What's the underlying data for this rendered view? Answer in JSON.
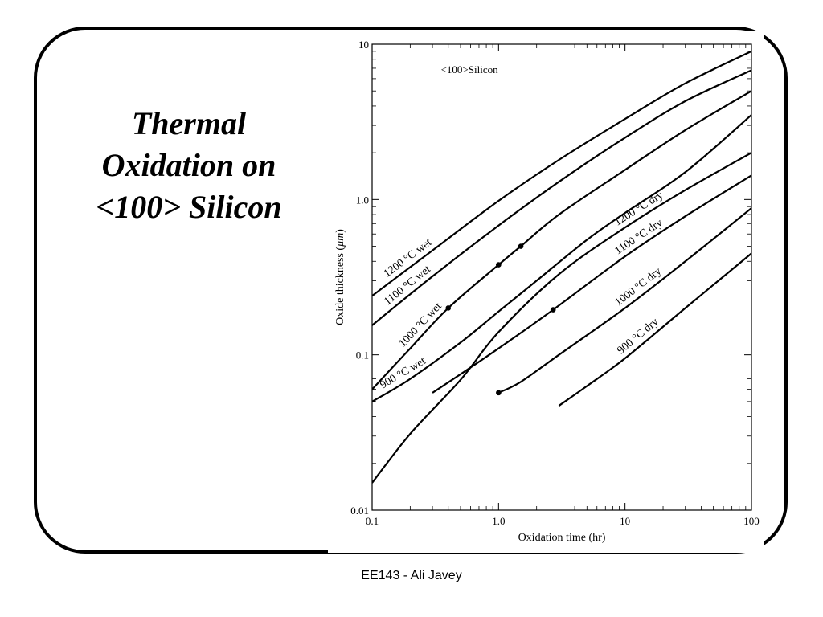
{
  "slide": {
    "title": "Thermal\nOxidation on\n<100> Silicon",
    "footer": "EE143 - Ali Javey"
  },
  "chart_data": {
    "type": "line",
    "xlabel": "Oxidation time (hr)",
    "ylabel_prefix": "Oxide thickness (",
    "ylabel_unit": "μm",
    "ylabel_suffix": ")",
    "annotation": "<100>Silicon",
    "xscale": "log",
    "yscale": "log",
    "xlim": [
      0.1,
      100
    ],
    "ylim": [
      0.01,
      10
    ],
    "xticks": [
      {
        "value": 0.1,
        "label": "0.1"
      },
      {
        "value": 1,
        "label": "1.0"
      },
      {
        "value": 10,
        "label": "10"
      },
      {
        "value": 100,
        "label": "100"
      }
    ],
    "yticks": [
      {
        "value": 0.01,
        "label": "0.01"
      },
      {
        "value": 0.1,
        "label": "0.1"
      },
      {
        "value": 1,
        "label": "1.0"
      },
      {
        "value": 10,
        "label": "10"
      }
    ],
    "grid": false,
    "legend": "none",
    "series": [
      {
        "name": "1200 °C wet",
        "x": [
          0.1,
          0.3,
          1,
          3,
          10,
          30,
          100
        ],
        "y": [
          0.24,
          0.47,
          0.98,
          1.8,
          3.3,
          5.6,
          9.0
        ]
      },
      {
        "name": "1100 °C wet",
        "x": [
          0.1,
          0.3,
          1,
          3,
          10,
          30,
          100
        ],
        "y": [
          0.155,
          0.32,
          0.68,
          1.3,
          2.5,
          4.3,
          6.8
        ]
      },
      {
        "name": "1000 °C wet",
        "x": [
          0.1,
          0.2,
          0.4,
          1,
          1.5,
          3,
          10,
          30,
          100
        ],
        "y": [
          0.06,
          0.11,
          0.2,
          0.38,
          0.5,
          0.8,
          1.55,
          2.8,
          5.0
        ]
      },
      {
        "name": "900 °C wet",
        "x": [
          0.1,
          0.2,
          0.5,
          1,
          2,
          5,
          10,
          30,
          100
        ],
        "y": [
          0.05,
          0.07,
          0.12,
          0.19,
          0.3,
          0.55,
          0.82,
          1.5,
          3.5
        ]
      },
      {
        "name": "1200 °C dry",
        "x": [
          0.1,
          0.2,
          0.5,
          1,
          3,
          10,
          30,
          100
        ],
        "y": [
          0.015,
          0.031,
          0.069,
          0.14,
          0.33,
          0.66,
          1.15,
          2.0
        ]
      },
      {
        "name": "1100 °C dry",
        "x": [
          0.3,
          0.5,
          1,
          2.7,
          10,
          30,
          100
        ],
        "y": [
          0.057,
          0.075,
          0.11,
          0.195,
          0.43,
          0.78,
          1.43
        ]
      },
      {
        "name": "1000 °C dry",
        "x": [
          1,
          1.5,
          3,
          10,
          30,
          100
        ],
        "y": [
          0.057,
          0.067,
          0.1,
          0.2,
          0.4,
          0.88
        ]
      },
      {
        "name": "900 °C dry",
        "x": [
          3,
          5,
          10,
          30,
          100
        ],
        "y": [
          0.047,
          0.063,
          0.095,
          0.2,
          0.45
        ]
      }
    ],
    "markers": [
      {
        "x": 0.4,
        "y": 0.2
      },
      {
        "x": 1,
        "y": 0.38
      },
      {
        "x": 1.5,
        "y": 0.5
      },
      {
        "x": 2.7,
        "y": 0.195
      },
      {
        "x": 1,
        "y": 0.057
      }
    ]
  }
}
